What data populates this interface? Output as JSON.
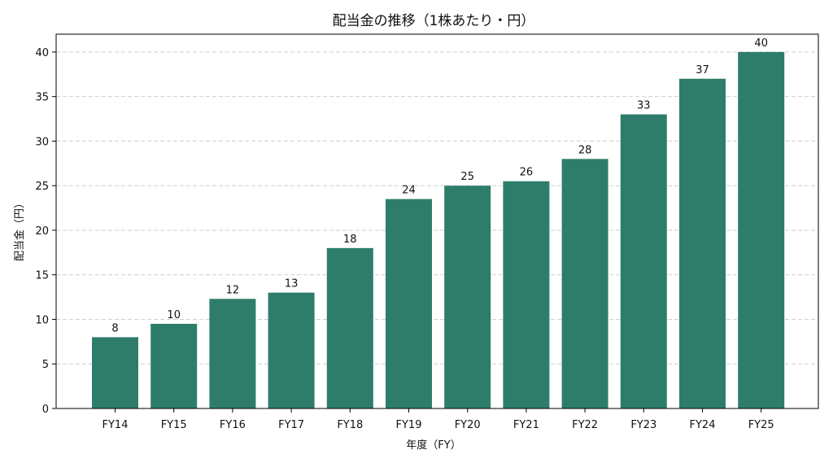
{
  "chart_data": {
    "type": "bar",
    "title": "配当金の推移（1株あたり・円）",
    "xlabel": "年度（FY）",
    "ylabel": "配当金（円）",
    "categories": [
      "FY14",
      "FY15",
      "FY16",
      "FY17",
      "FY18",
      "FY19",
      "FY20",
      "FY21",
      "FY22",
      "FY23",
      "FY24",
      "FY25"
    ],
    "values": [
      8,
      9.5,
      12.3,
      13,
      18,
      23.5,
      25,
      25.5,
      28,
      33,
      37,
      40
    ],
    "data_labels": [
      "8",
      "10",
      "12",
      "13",
      "18",
      "24",
      "25",
      "26",
      "28",
      "33",
      "37",
      "40"
    ],
    "ylim": [
      0,
      42
    ],
    "yticks": [
      0,
      5,
      10,
      15,
      20,
      25,
      30,
      35,
      40
    ],
    "grid": "y-dashed",
    "bar_color": "#2e7d6b"
  }
}
